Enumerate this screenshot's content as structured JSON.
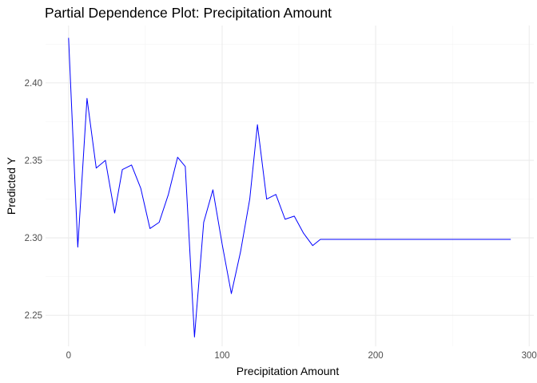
{
  "chart_data": {
    "type": "line",
    "title": "Partial Dependence Plot: Precipitation Amount",
    "xlabel": "Precipitation Amount",
    "ylabel": "Predicted Y",
    "xlim": [
      -15,
      303
    ],
    "ylim": [
      2.23,
      2.437
    ],
    "x_ticks": [
      0,
      100,
      200,
      300
    ],
    "x_minor_ticks": [
      50,
      150,
      250
    ],
    "y_ticks": [
      2.25,
      2.3,
      2.35,
      2.4
    ],
    "y_tick_labels": [
      "2.25",
      "2.30",
      "2.35",
      "2.40"
    ],
    "y_minor_ticks": [
      2.275,
      2.325,
      2.375,
      2.425
    ],
    "grid": true,
    "legend": "none",
    "line_color": "#0000ff",
    "series": [
      {
        "x": [
          0,
          6,
          12,
          18,
          24,
          30,
          35,
          41,
          47,
          53,
          59,
          65,
          71,
          76,
          82,
          88,
          94,
          100,
          106,
          112,
          118,
          123,
          129,
          135,
          141,
          147,
          153,
          159,
          164,
          170,
          176,
          182,
          188,
          194,
          200,
          206,
          211,
          217,
          223,
          229,
          235,
          241,
          247,
          252,
          258,
          264,
          270,
          276,
          282,
          288
        ],
        "values": [
          2.429,
          2.294,
          2.39,
          2.345,
          2.35,
          2.316,
          2.344,
          2.347,
          2.332,
          2.306,
          2.31,
          2.328,
          2.352,
          2.346,
          2.236,
          2.31,
          2.331,
          2.296,
          2.264,
          2.291,
          2.325,
          2.373,
          2.325,
          2.328,
          2.312,
          2.314,
          2.303,
          2.295,
          2.299,
          2.299,
          2.299,
          2.299,
          2.299,
          2.299,
          2.299,
          2.299,
          2.299,
          2.299,
          2.299,
          2.299,
          2.299,
          2.299,
          2.299,
          2.299,
          2.299,
          2.299,
          2.299,
          2.299,
          2.299,
          2.299
        ]
      }
    ]
  }
}
